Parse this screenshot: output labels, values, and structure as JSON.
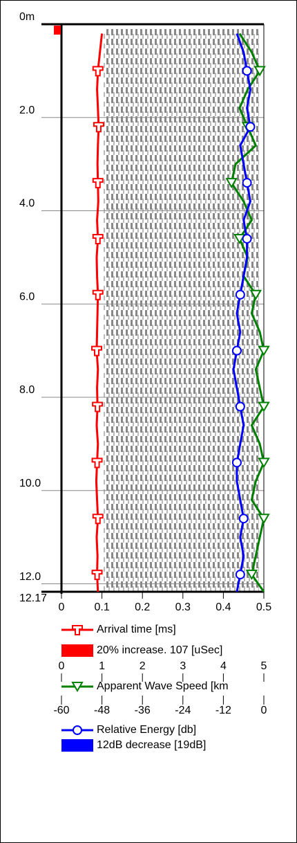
{
  "chart_data": {
    "type": "line",
    "ylim": [
      0,
      12.17
    ],
    "yticks": [
      {
        "value": 0,
        "label": "0m"
      },
      {
        "value": 2,
        "label": "2.0"
      },
      {
        "value": 4,
        "label": "4.0"
      },
      {
        "value": 6,
        "label": "6.0"
      },
      {
        "value": 8,
        "label": "8.0"
      },
      {
        "value": 10,
        "label": "10.0"
      },
      {
        "value": 12,
        "label": "12.0"
      },
      12.17
    ],
    "grid": true,
    "depths": [
      0.2,
      0.6,
      1.0,
      1.4,
      1.8,
      2.2,
      2.6,
      3.0,
      3.4,
      3.8,
      4.2,
      4.6,
      5.0,
      5.4,
      5.8,
      6.2,
      6.6,
      7.0,
      7.4,
      7.8,
      8.2,
      8.6,
      9.0,
      9.4,
      9.8,
      10.2,
      10.6,
      11.0,
      11.4,
      11.8,
      12.17
    ],
    "series": [
      {
        "name": "Arrival time [ms]",
        "color": "#ff0000",
        "marker": "tee",
        "xlim": [
          0,
          0.5
        ],
        "xticks": [
          0,
          0.1,
          0.2,
          0.3,
          0.4,
          0.5
        ],
        "band_label": "20% increase. 107 [uSec]",
        "values": [
          0.1,
          0.095,
          0.09,
          0.088,
          0.09,
          0.092,
          0.09,
          0.089,
          0.09,
          0.091,
          0.088,
          0.09,
          0.087,
          0.088,
          0.09,
          0.089,
          0.088,
          0.087,
          0.09,
          0.088,
          0.089,
          0.087,
          0.09,
          0.088,
          0.086,
          0.088,
          0.09,
          0.087,
          0.089,
          0.088,
          0.09
        ]
      },
      {
        "name": "Apparent Wave Speed [km",
        "color": "#008000",
        "marker": "triangle",
        "xlim": [
          0,
          5
        ],
        "xticks": [
          0,
          1,
          2,
          3,
          4,
          5
        ],
        "values": [
          4.4,
          4.7,
          4.9,
          4.6,
          4.4,
          4.6,
          4.8,
          4.3,
          4.2,
          4.5,
          4.7,
          4.4,
          4.6,
          4.5,
          4.8,
          4.7,
          4.9,
          5.0,
          4.8,
          4.9,
          5.0,
          4.7,
          4.9,
          5.0,
          4.8,
          4.7,
          5.0,
          4.9,
          4.8,
          4.7,
          5.0
        ]
      },
      {
        "name": "Relative Energy [db]",
        "color": "#0000ff",
        "marker": "circle",
        "xlim": [
          -60,
          0
        ],
        "xticks": [
          -60,
          -48,
          -36,
          -24,
          -12,
          0
        ],
        "band_label": "12dB decrease [19dB]",
        "values": [
          -8,
          -6,
          -5,
          -4,
          -5,
          -4,
          -7,
          -6,
          -5,
          -4,
          -6,
          -5,
          -5,
          -6,
          -7,
          -8,
          -7,
          -8,
          -9,
          -8,
          -7,
          -6,
          -7,
          -8,
          -8,
          -7,
          -6,
          -7,
          -6,
          -7,
          -8
        ]
      }
    ]
  }
}
